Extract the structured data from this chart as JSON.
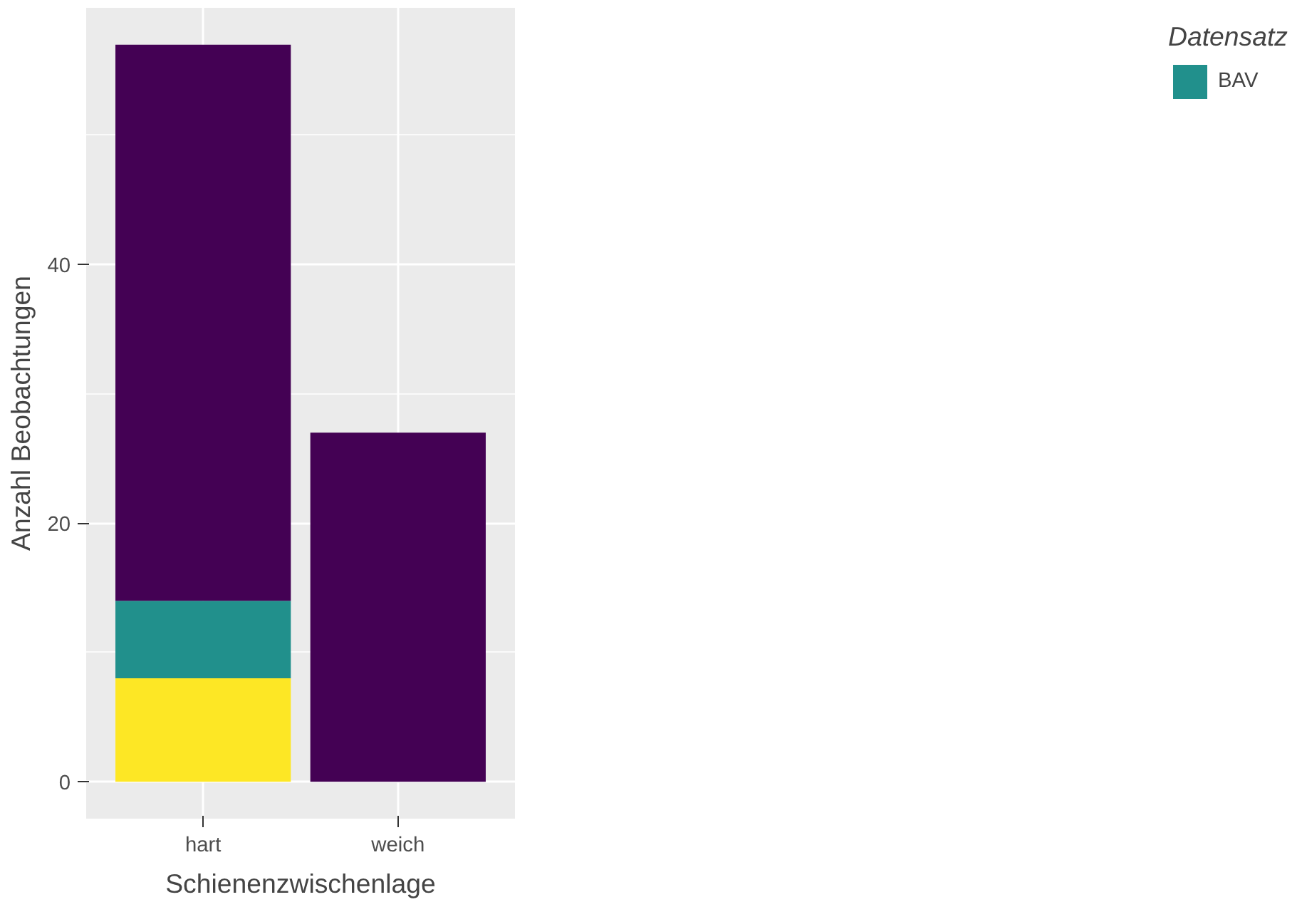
{
  "chart_data": {
    "type": "bar",
    "stacked": true,
    "xlabel": "Schienenzwischenlage",
    "ylabel": "Anzahl Beobachtungen",
    "legend_title": "Datensatz",
    "categories": [
      "hart",
      "weich"
    ],
    "series": [
      {
        "color": "#fde725",
        "values": [
          8,
          0
        ]
      },
      {
        "name": "BAV",
        "color": "#21908c",
        "values": [
          6,
          0
        ]
      },
      {
        "color": "#440154",
        "values": [
          43,
          27
        ]
      }
    ],
    "ylim": [
      -2.85,
      59.85
    ],
    "yticks": [
      0,
      20,
      40
    ],
    "grid": true,
    "legend": "right"
  }
}
